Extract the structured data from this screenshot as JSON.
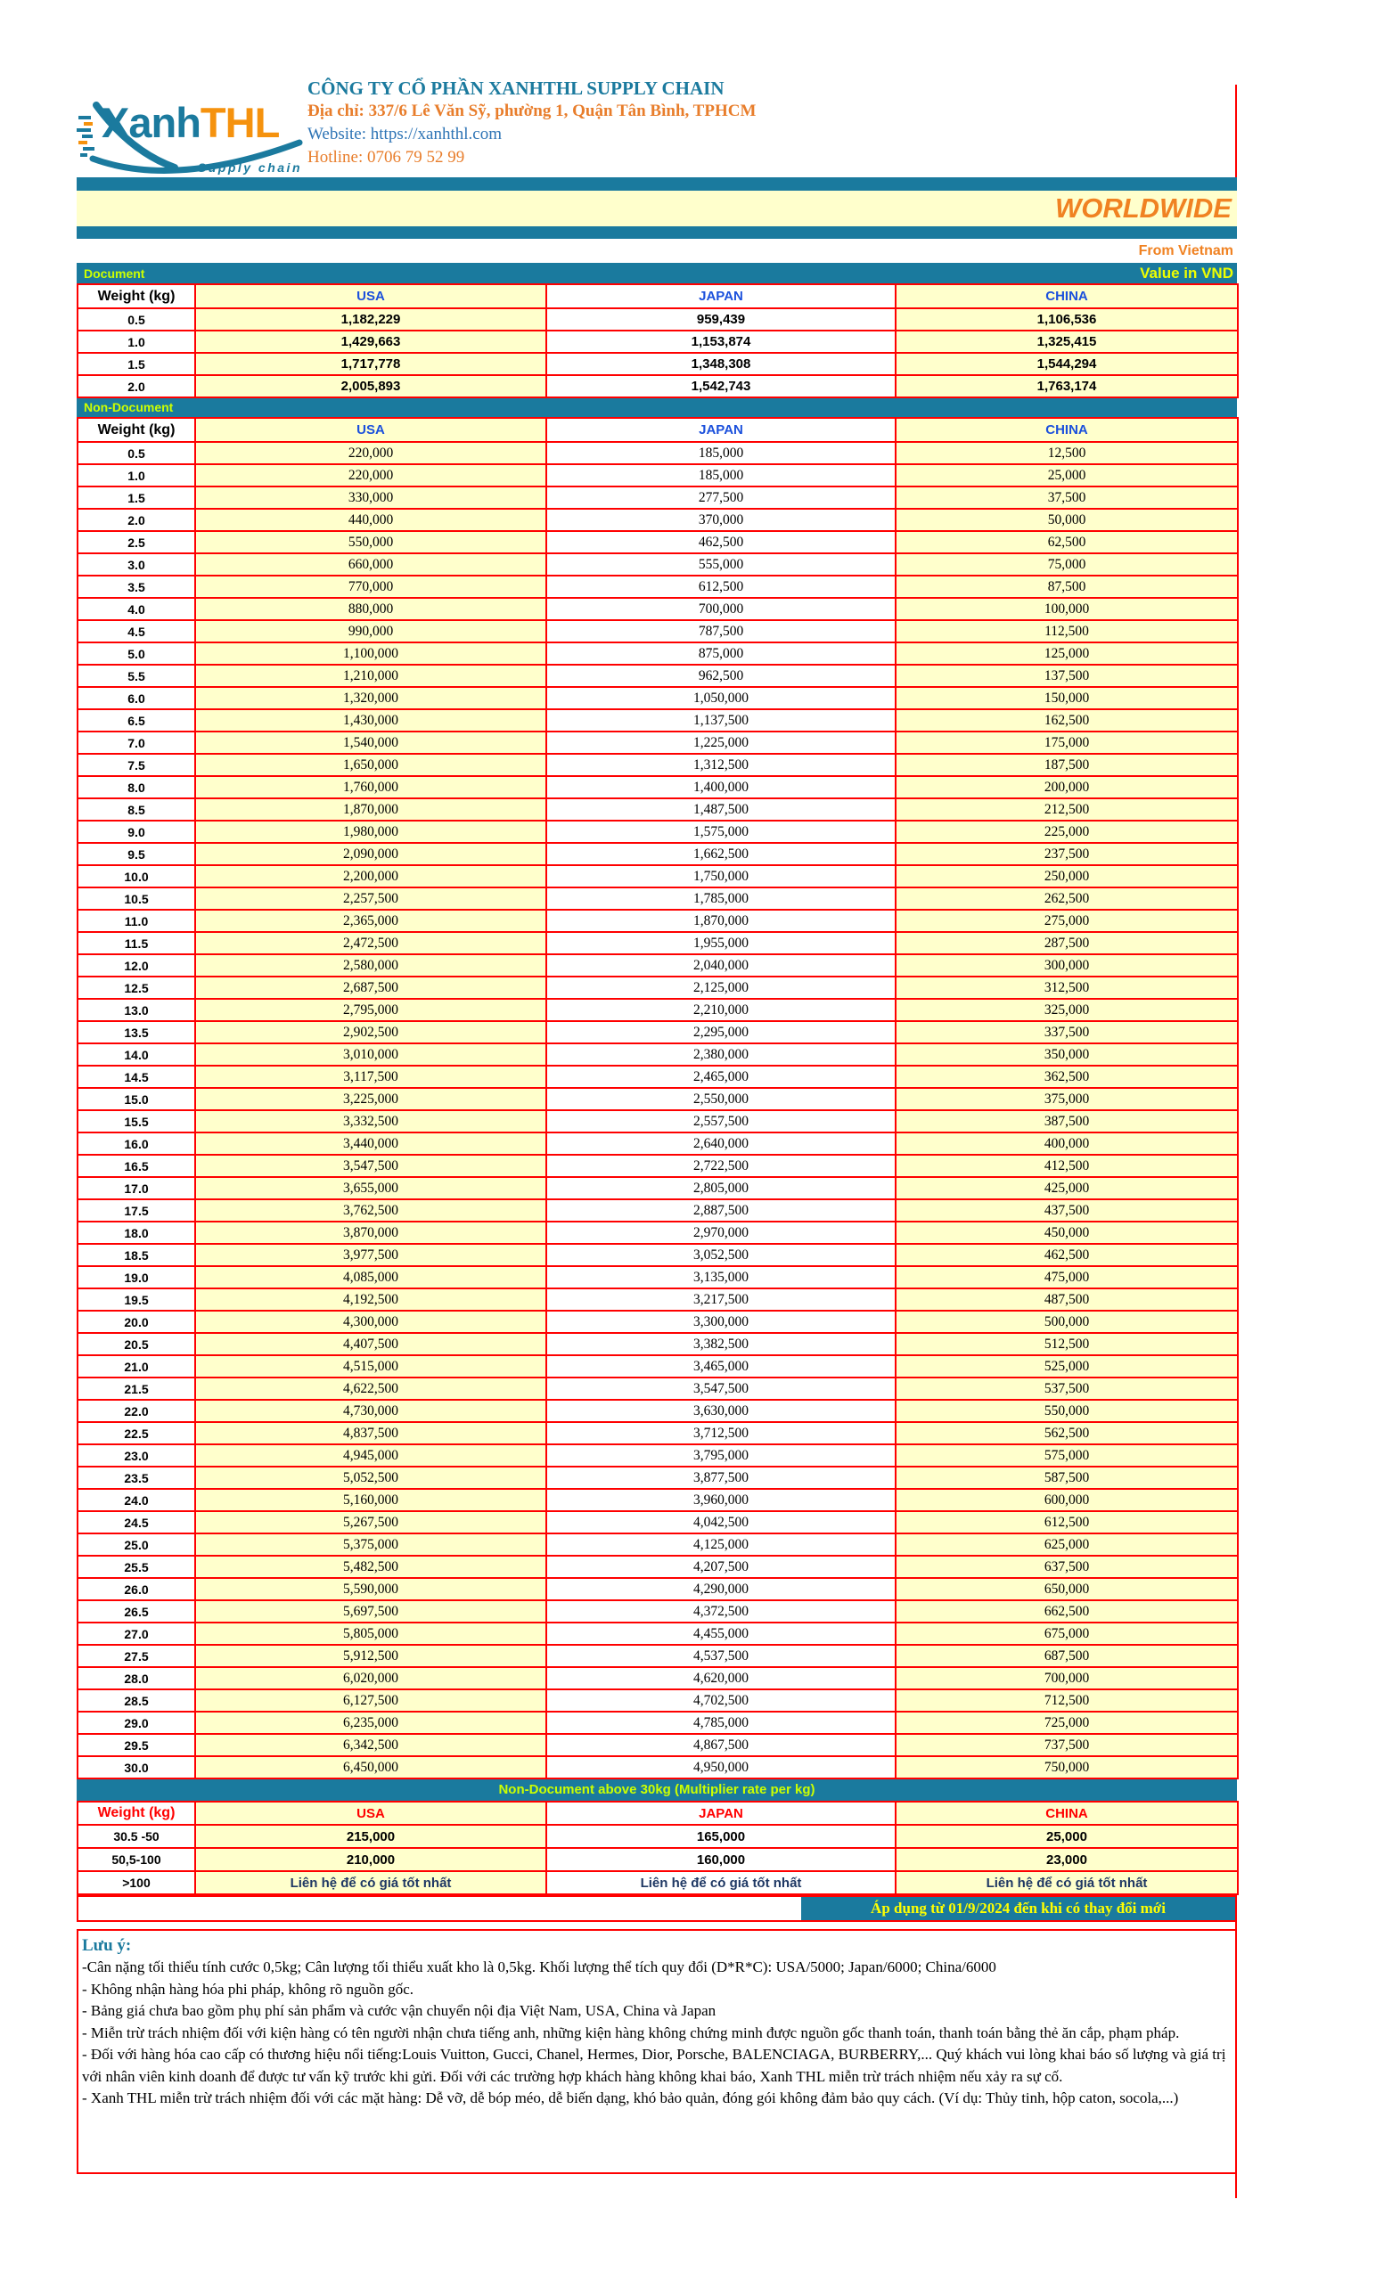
{
  "company": {
    "logo": {
      "part1": "Xanh",
      "part2": "THL",
      "tagline": "Supply chain"
    },
    "name": "CÔNG TY CỔ PHẦN XANHTHL SUPPLY CHAIN",
    "address": "Địa chỉ: 337/6 Lê Văn Sỹ, phường 1, Quận Tân Bình, TPHCM",
    "website": "Website: https://xanhthl.com",
    "hotline": "Hotline: 0706 79 52 99"
  },
  "banner": {
    "title": "WORLDWIDE",
    "origin": "From Vietnam",
    "value_unit": "Value in VND"
  },
  "colors": {
    "teal": "#1a7a9e",
    "orange": "#f08222",
    "cream_cell": "#ffffcc",
    "border_red": "#ff0000",
    "header_blue": "#1b50dc",
    "label_green": "#ccff00",
    "effective_yellow": "#ffff00",
    "contact_navy": "#1f3864"
  },
  "document_table": {
    "section_label": "Document",
    "headers": [
      "Weight (kg)",
      "USA",
      "JAPAN",
      "CHINA"
    ],
    "rows": [
      [
        "0.5",
        "1,182,229",
        "959,439",
        "1,106,536"
      ],
      [
        "1.0",
        "1,429,663",
        "1,153,874",
        "1,325,415"
      ],
      [
        "1.5",
        "1,717,778",
        "1,348,308",
        "1,544,294"
      ],
      [
        "2.0",
        "2,005,893",
        "1,542,743",
        "1,763,174"
      ]
    ]
  },
  "nondocument_table": {
    "section_label": "Non-Document",
    "headers": [
      "Weight (kg)",
      "USA",
      "JAPAN",
      "CHINA"
    ],
    "rows": [
      [
        "0.5",
        "220,000",
        "185,000",
        "12,500"
      ],
      [
        "1.0",
        "220,000",
        "185,000",
        "25,000"
      ],
      [
        "1.5",
        "330,000",
        "277,500",
        "37,500"
      ],
      [
        "2.0",
        "440,000",
        "370,000",
        "50,000"
      ],
      [
        "2.5",
        "550,000",
        "462,500",
        "62,500"
      ],
      [
        "3.0",
        "660,000",
        "555,000",
        "75,000"
      ],
      [
        "3.5",
        "770,000",
        "612,500",
        "87,500"
      ],
      [
        "4.0",
        "880,000",
        "700,000",
        "100,000"
      ],
      [
        "4.5",
        "990,000",
        "787,500",
        "112,500"
      ],
      [
        "5.0",
        "1,100,000",
        "875,000",
        "125,000"
      ],
      [
        "5.5",
        "1,210,000",
        "962,500",
        "137,500"
      ],
      [
        "6.0",
        "1,320,000",
        "1,050,000",
        "150,000"
      ],
      [
        "6.5",
        "1,430,000",
        "1,137,500",
        "162,500"
      ],
      [
        "7.0",
        "1,540,000",
        "1,225,000",
        "175,000"
      ],
      [
        "7.5",
        "1,650,000",
        "1,312,500",
        "187,500"
      ],
      [
        "8.0",
        "1,760,000",
        "1,400,000",
        "200,000"
      ],
      [
        "8.5",
        "1,870,000",
        "1,487,500",
        "212,500"
      ],
      [
        "9.0",
        "1,980,000",
        "1,575,000",
        "225,000"
      ],
      [
        "9.5",
        "2,090,000",
        "1,662,500",
        "237,500"
      ],
      [
        "10.0",
        "2,200,000",
        "1,750,000",
        "250,000"
      ],
      [
        "10.5",
        "2,257,500",
        "1,785,000",
        "262,500"
      ],
      [
        "11.0",
        "2,365,000",
        "1,870,000",
        "275,000"
      ],
      [
        "11.5",
        "2,472,500",
        "1,955,000",
        "287,500"
      ],
      [
        "12.0",
        "2,580,000",
        "2,040,000",
        "300,000"
      ],
      [
        "12.5",
        "2,687,500",
        "2,125,000",
        "312,500"
      ],
      [
        "13.0",
        "2,795,000",
        "2,210,000",
        "325,000"
      ],
      [
        "13.5",
        "2,902,500",
        "2,295,000",
        "337,500"
      ],
      [
        "14.0",
        "3,010,000",
        "2,380,000",
        "350,000"
      ],
      [
        "14.5",
        "3,117,500",
        "2,465,000",
        "362,500"
      ],
      [
        "15.0",
        "3,225,000",
        "2,550,000",
        "375,000"
      ],
      [
        "15.5",
        "3,332,500",
        "2,557,500",
        "387,500"
      ],
      [
        "16.0",
        "3,440,000",
        "2,640,000",
        "400,000"
      ],
      [
        "16.5",
        "3,547,500",
        "2,722,500",
        "412,500"
      ],
      [
        "17.0",
        "3,655,000",
        "2,805,000",
        "425,000"
      ],
      [
        "17.5",
        "3,762,500",
        "2,887,500",
        "437,500"
      ],
      [
        "18.0",
        "3,870,000",
        "2,970,000",
        "450,000"
      ],
      [
        "18.5",
        "3,977,500",
        "3,052,500",
        "462,500"
      ],
      [
        "19.0",
        "4,085,000",
        "3,135,000",
        "475,000"
      ],
      [
        "19.5",
        "4,192,500",
        "3,217,500",
        "487,500"
      ],
      [
        "20.0",
        "4,300,000",
        "3,300,000",
        "500,000"
      ],
      [
        "20.5",
        "4,407,500",
        "3,382,500",
        "512,500"
      ],
      [
        "21.0",
        "4,515,000",
        "3,465,000",
        "525,000"
      ],
      [
        "21.5",
        "4,622,500",
        "3,547,500",
        "537,500"
      ],
      [
        "22.0",
        "4,730,000",
        "3,630,000",
        "550,000"
      ],
      [
        "22.5",
        "4,837,500",
        "3,712,500",
        "562,500"
      ],
      [
        "23.0",
        "4,945,000",
        "3,795,000",
        "575,000"
      ],
      [
        "23.5",
        "5,052,500",
        "3,877,500",
        "587,500"
      ],
      [
        "24.0",
        "5,160,000",
        "3,960,000",
        "600,000"
      ],
      [
        "24.5",
        "5,267,500",
        "4,042,500",
        "612,500"
      ],
      [
        "25.0",
        "5,375,000",
        "4,125,000",
        "625,000"
      ],
      [
        "25.5",
        "5,482,500",
        "4,207,500",
        "637,500"
      ],
      [
        "26.0",
        "5,590,000",
        "4,290,000",
        "650,000"
      ],
      [
        "26.5",
        "5,697,500",
        "4,372,500",
        "662,500"
      ],
      [
        "27.0",
        "5,805,000",
        "4,455,000",
        "675,000"
      ],
      [
        "27.5",
        "5,912,500",
        "4,537,500",
        "687,500"
      ],
      [
        "28.0",
        "6,020,000",
        "4,620,000",
        "700,000"
      ],
      [
        "28.5",
        "6,127,500",
        "4,702,500",
        "712,500"
      ],
      [
        "29.0",
        "6,235,000",
        "4,785,000",
        "725,000"
      ],
      [
        "29.5",
        "6,342,500",
        "4,867,500",
        "737,500"
      ],
      [
        "30.0",
        "6,450,000",
        "4,950,000",
        "750,000"
      ]
    ]
  },
  "over30_table": {
    "section_label": "Non-Document above 30kg (Multiplier rate per kg)",
    "headers": [
      "Weight (kg)",
      "USA",
      "JAPAN",
      "CHINA"
    ],
    "rows": [
      [
        "30.5 -50",
        "215,000",
        "165,000",
        "25,000"
      ],
      [
        "50,5-100",
        "210,000",
        "160,000",
        "23,000"
      ],
      [
        ">100",
        "Liên hệ để có giá tốt nhất",
        "Liên hệ để có giá tốt nhất",
        "Liên hệ để có giá tốt nhất"
      ]
    ]
  },
  "effective_note": "Áp dụng từ 01/9/2024 đến khi có thay đổi mới",
  "notes": {
    "title": "Lưu ý:",
    "items": [
      "-Cân nặng tối thiểu tính cước 0,5kg; Cân lượng tối thiểu xuất kho là 0,5kg. Khối lượng thể tích quy đổi (D*R*C): USA/5000; Japan/6000; China/6000",
      "- Không nhận hàng hóa phi pháp, không rõ nguồn gốc.",
      "- Bảng giá chưa bao gồm phụ phí sản phẩm và cước vận chuyển nội địa Việt Nam, USA, China và Japan",
      "- Miễn trừ trách nhiệm đối với kiện hàng có tên người nhận chưa tiếng anh, những kiện hàng không chứng minh được nguồn gốc thanh toán, thanh toán bằng thẻ ăn cắp, phạm pháp.",
      "- Đối với hàng hóa cao cấp có thương hiệu nổi tiếng:Louis Vuitton, Gucci, Chanel, Hermes, Dior, Porsche, BALENCIAGA, BURBERRY,... Quý khách vui lòng khai báo số lượng và giá trị với nhân viên kinh doanh để được tư vấn kỹ trước khi gửi. Đối với các trường hợp khách hàng không khai báo, Xanh THL miễn trừ trách nhiệm nếu xảy ra sự cố.",
      "- Xanh THL miễn trừ trách nhiệm đối với các mặt hàng: Dễ vỡ, dễ bóp méo, dễ biến dạng, khó bảo quản, đóng gói không đảm bảo quy cách. (Ví dụ: Thủy tinh, hộp caton, socola,...)"
    ]
  }
}
